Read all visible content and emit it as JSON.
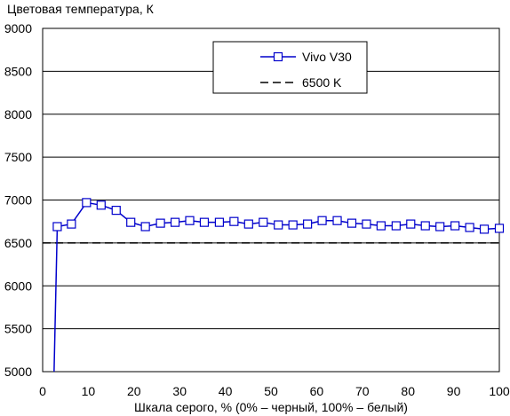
{
  "chart_data": {
    "type": "line",
    "title": "",
    "ylabel": "Цветовая температура, К",
    "xlabel": "Шкала серого, % (0% – черный, 100% – белый)",
    "xlim": [
      0,
      100
    ],
    "ylim": [
      5000,
      9000
    ],
    "xticks": [
      "0",
      "10",
      "20",
      "30",
      "40",
      "50",
      "60",
      "70",
      "80",
      "90",
      "100"
    ],
    "yticks": [
      "5000",
      "5500",
      "6000",
      "6500",
      "7000",
      "7500",
      "8000",
      "8500",
      "9000"
    ],
    "grid": "horizontal",
    "legend_position": "top-center",
    "series": [
      {
        "name": "Vivo V30",
        "color": "#0000cc",
        "marker": "square",
        "x": [
          2.5,
          3.2,
          6.3,
          9.6,
          12.8,
          16.1,
          19.3,
          22.5,
          25.8,
          29.0,
          32.2,
          35.4,
          38.7,
          41.9,
          45.1,
          48.3,
          51.6,
          54.8,
          58.0,
          61.2,
          64.5,
          67.7,
          70.9,
          74.1,
          77.4,
          80.6,
          83.8,
          87.0,
          90.3,
          93.5,
          96.7,
          100.0
        ],
        "y": [
          5000,
          6690,
          6720,
          6970,
          6940,
          6880,
          6740,
          6690,
          6730,
          6740,
          6760,
          6740,
          6740,
          6750,
          6720,
          6740,
          6710,
          6710,
          6720,
          6760,
          6760,
          6730,
          6720,
          6700,
          6700,
          6720,
          6700,
          6690,
          6700,
          6680,
          6660,
          6670
        ]
      },
      {
        "name": "6500 K",
        "color": "#000000",
        "style": "dashed",
        "x": [
          0,
          100
        ],
        "y": [
          6500,
          6500
        ]
      }
    ]
  }
}
